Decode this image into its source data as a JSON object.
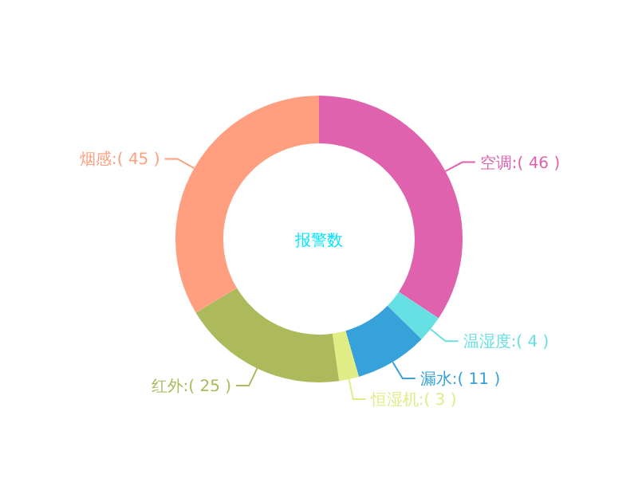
{
  "chart_data": {
    "type": "donut",
    "categories": [
      "空调",
      "温湿度",
      "漏水",
      "恒湿机",
      "红外",
      "烟感"
    ],
    "values": [
      46,
      4,
      11,
      3,
      25,
      45
    ],
    "value_labels": [
      ":( 46 )",
      ":( 4 )",
      ":( 11 )",
      ":( 3 )",
      ":( 25 )",
      ":( 45 )"
    ],
    "colors": [
      "#e062ae",
      "#67e0e3",
      "#37a2da",
      "#e0ec84",
      "#acba5b",
      "#ff9f7f"
    ],
    "annotations": [
      "报警数"
    ]
  }
}
